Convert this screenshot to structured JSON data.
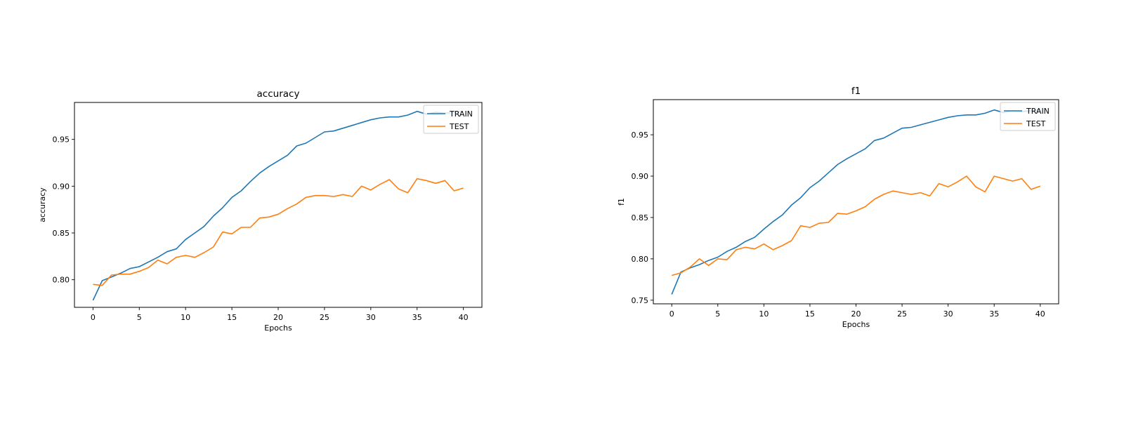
{
  "chart_data": [
    {
      "type": "line",
      "title": "accuracy",
      "xlabel": "Epochs",
      "ylabel": "accuracy",
      "xlim": [
        -2,
        42
      ],
      "ylim": [
        0.7705,
        0.9895
      ],
      "xticks": [
        0,
        5,
        10,
        15,
        20,
        25,
        30,
        35,
        40
      ],
      "yticks": [
        0.8,
        0.85,
        0.9,
        0.95
      ],
      "legend": "upper right",
      "grid": false,
      "x": [
        0,
        1,
        2,
        3,
        4,
        5,
        6,
        7,
        8,
        9,
        10,
        11,
        12,
        13,
        14,
        15,
        16,
        17,
        18,
        19,
        20,
        21,
        22,
        23,
        24,
        25,
        26,
        27,
        28,
        29,
        30,
        31,
        32,
        33,
        34,
        35,
        36,
        37,
        38,
        39,
        40
      ],
      "series": [
        {
          "name": "TRAIN",
          "color": "#1f77b4",
          "values": [
            0.778,
            0.799,
            0.803,
            0.807,
            0.812,
            0.814,
            0.819,
            0.824,
            0.83,
            0.833,
            0.843,
            0.85,
            0.857,
            0.868,
            0.877,
            0.888,
            0.895,
            0.905,
            0.914,
            0.921,
            0.927,
            0.933,
            0.943,
            0.946,
            0.952,
            0.958,
            0.959,
            0.962,
            0.965,
            0.968,
            0.971,
            0.973,
            0.974,
            0.974,
            0.976,
            0.98,
            0.977,
            0.979,
            0.978,
            0.979,
            0.98
          ]
        },
        {
          "name": "TEST",
          "color": "#ff7f0e",
          "values": [
            0.795,
            0.794,
            0.805,
            0.806,
            0.806,
            0.809,
            0.813,
            0.821,
            0.817,
            0.824,
            0.826,
            0.824,
            0.829,
            0.835,
            0.851,
            0.849,
            0.856,
            0.856,
            0.866,
            0.867,
            0.87,
            0.876,
            0.881,
            0.888,
            0.89,
            0.89,
            0.889,
            0.891,
            0.889,
            0.9,
            0.896,
            0.902,
            0.907,
            0.897,
            0.893,
            0.908,
            0.906,
            0.903,
            0.906,
            0.895,
            0.898
          ]
        }
      ]
    },
    {
      "type": "line",
      "title": "f1",
      "xlabel": "Epochs",
      "ylabel": "f1",
      "xlim": [
        -2,
        42
      ],
      "ylim": [
        0.7456,
        0.9925
      ],
      "xticks": [
        0,
        5,
        10,
        15,
        20,
        25,
        30,
        35,
        40
      ],
      "yticks": [
        0.75,
        0.8,
        0.85,
        0.9,
        0.95
      ],
      "legend": "upper right",
      "grid": false,
      "x": [
        0,
        1,
        2,
        3,
        4,
        5,
        6,
        7,
        8,
        9,
        10,
        11,
        12,
        13,
        14,
        15,
        16,
        17,
        18,
        19,
        20,
        21,
        22,
        23,
        24,
        25,
        26,
        27,
        28,
        29,
        30,
        31,
        32,
        33,
        34,
        35,
        36,
        37,
        38,
        39,
        40
      ],
      "series": [
        {
          "name": "TRAIN",
          "color": "#1f77b4",
          "values": [
            0.757,
            0.784,
            0.789,
            0.793,
            0.798,
            0.802,
            0.809,
            0.814,
            0.821,
            0.826,
            0.836,
            0.845,
            0.853,
            0.865,
            0.874,
            0.886,
            0.894,
            0.904,
            0.914,
            0.921,
            0.927,
            0.933,
            0.943,
            0.946,
            0.952,
            0.958,
            0.959,
            0.962,
            0.965,
            0.968,
            0.971,
            0.973,
            0.974,
            0.974,
            0.976,
            0.98,
            0.977,
            0.979,
            0.978,
            0.979,
            0.98
          ]
        },
        {
          "name": "TEST",
          "color": "#ff7f0e",
          "values": [
            0.78,
            0.783,
            0.79,
            0.8,
            0.792,
            0.8,
            0.799,
            0.811,
            0.814,
            0.812,
            0.818,
            0.811,
            0.816,
            0.822,
            0.84,
            0.838,
            0.843,
            0.844,
            0.855,
            0.854,
            0.858,
            0.863,
            0.872,
            0.878,
            0.882,
            0.88,
            0.878,
            0.88,
            0.876,
            0.891,
            0.887,
            0.893,
            0.9,
            0.887,
            0.881,
            0.9,
            0.897,
            0.894,
            0.897,
            0.884,
            0.888
          ]
        }
      ]
    }
  ]
}
